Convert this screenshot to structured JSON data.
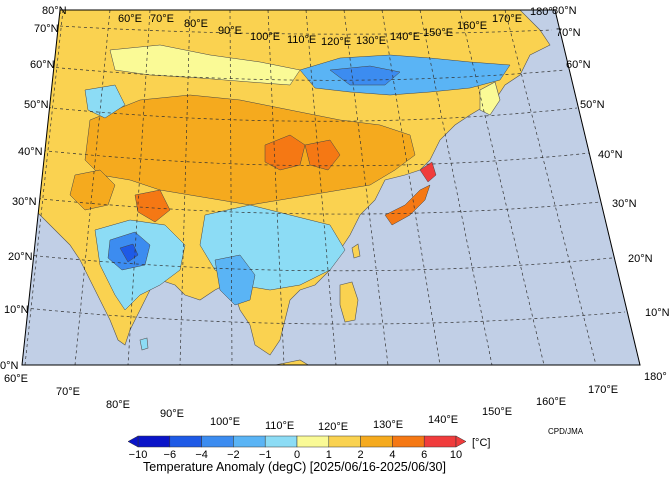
{
  "map": {
    "title": "Temperature Anomaly (degC) [2025/06/16-2025/06/30]",
    "credit": "CPD/JMA",
    "ocean_color": "#c1cfe6",
    "lat_labels": [
      "0°N",
      "10°N",
      "20°N",
      "30°N",
      "40°N",
      "50°N",
      "60°N",
      "70°N",
      "80°N"
    ],
    "lon_labels": [
      "60°E",
      "70°E",
      "80°E",
      "90°E",
      "100°E",
      "110°E",
      "120°E",
      "130°E",
      "140°E",
      "150°E",
      "160°E",
      "170°E",
      "180°"
    ]
  },
  "colorbar": {
    "unit": "[°C]",
    "tick_labels": [
      "−10",
      "−6",
      "−4",
      "−2",
      "−1",
      "0",
      "1",
      "2",
      "4",
      "6",
      "10"
    ],
    "colors": [
      "#0a14c8",
      "#1e5ae6",
      "#3c8cf0",
      "#5ab4f5",
      "#8cdcf5",
      "#fafa96",
      "#fad250",
      "#f5aa1e",
      "#f57814",
      "#f03c3c"
    ]
  }
}
